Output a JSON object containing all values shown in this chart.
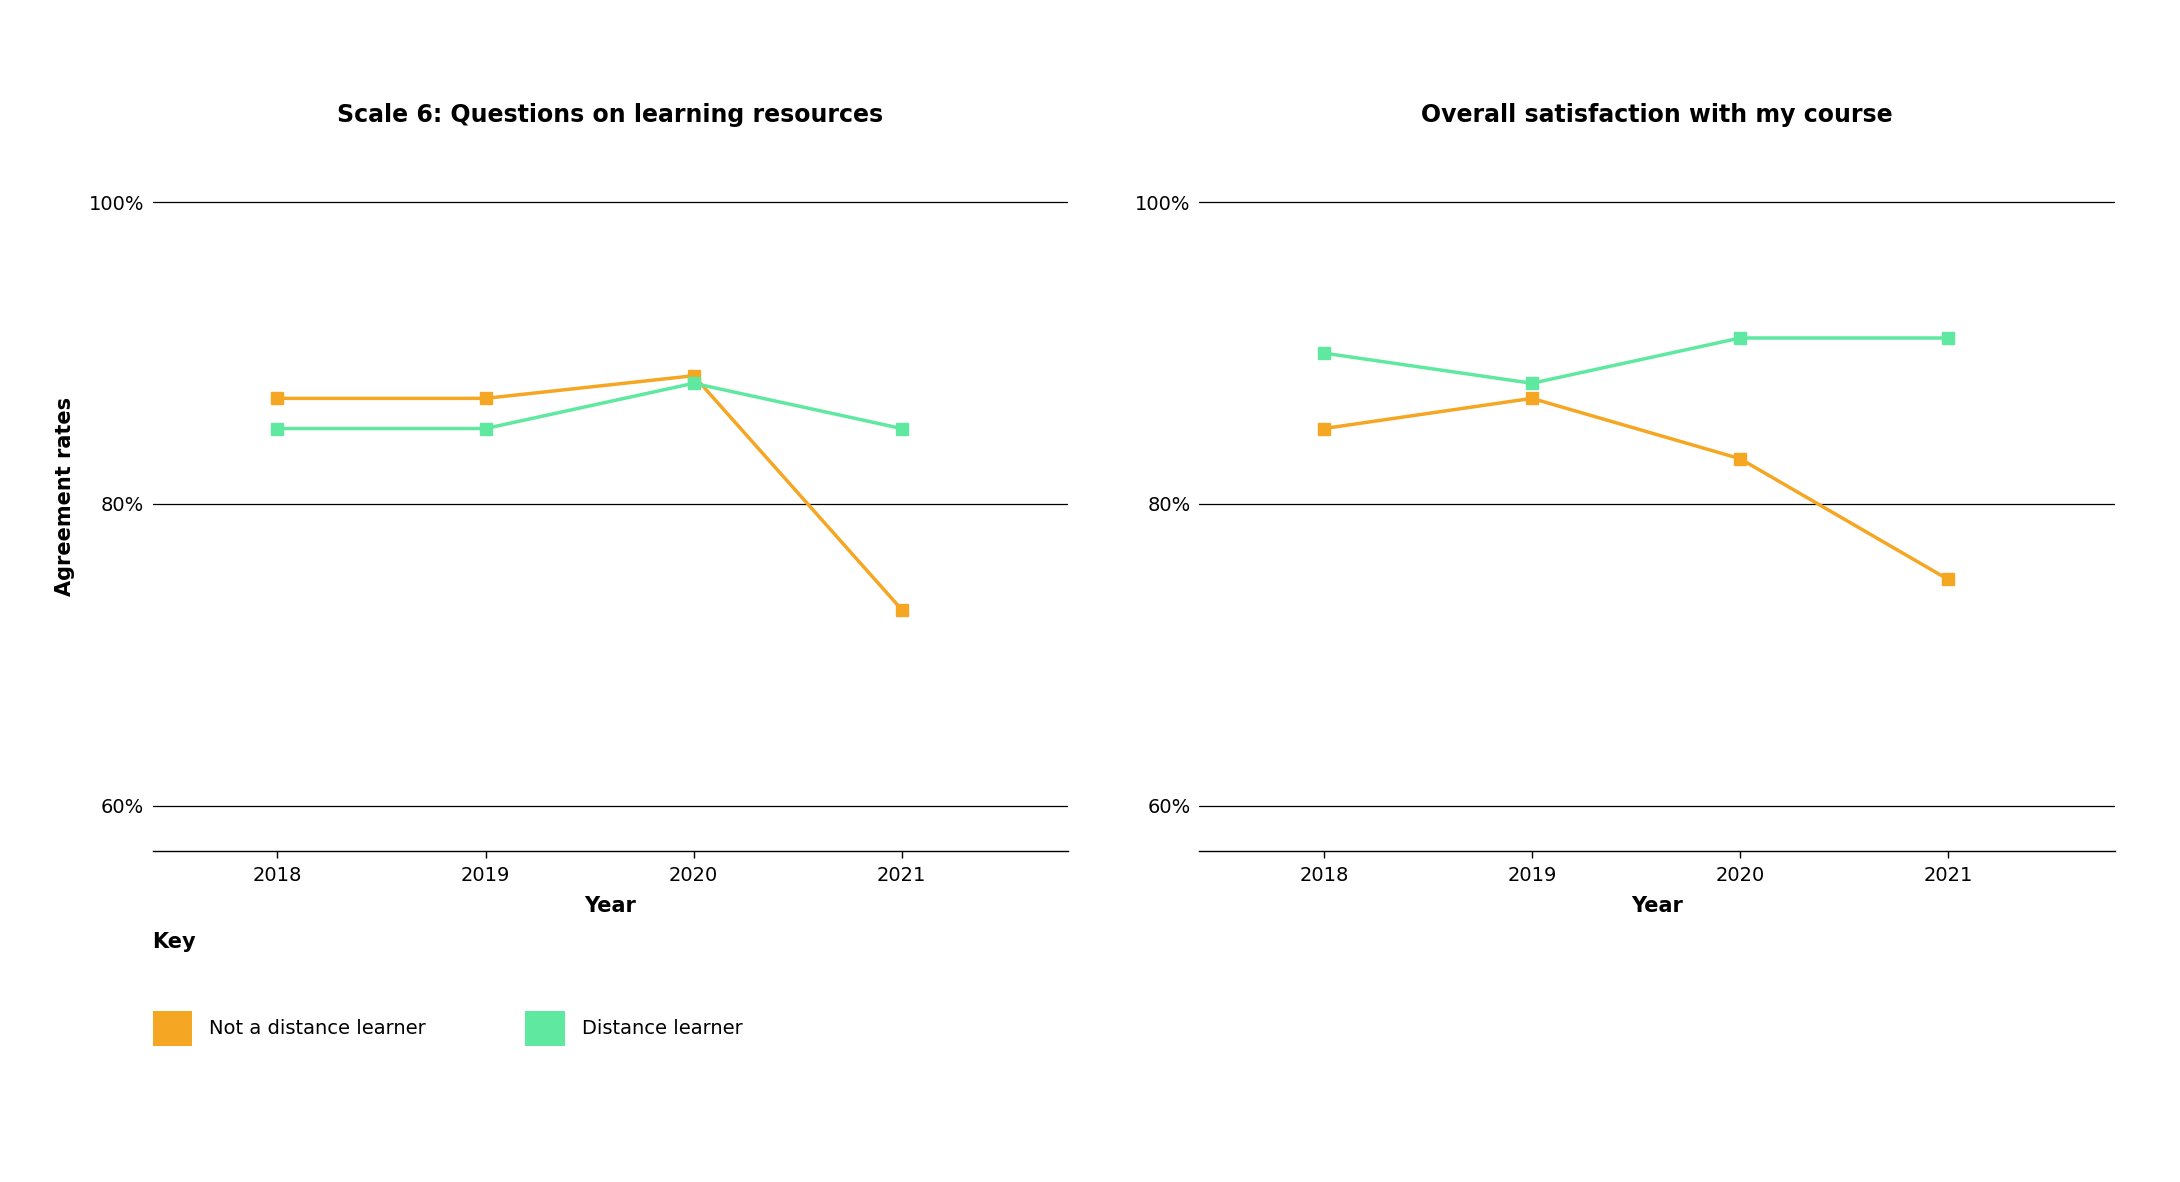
{
  "years": [
    2018,
    2019,
    2020,
    2021
  ],
  "chart1": {
    "title": "Scale 6: Questions on learning resources",
    "orange": [
      87.0,
      87.0,
      88.5,
      73.0
    ],
    "green": [
      85.0,
      85.0,
      88.0,
      85.0
    ]
  },
  "chart2": {
    "title": "Overall satisfaction with my course",
    "orange": [
      85.0,
      87.0,
      83.0,
      75.0
    ],
    "green": [
      90.0,
      88.0,
      91.0,
      91.0
    ]
  },
  "orange_color": "#F5A623",
  "green_color": "#5EE8A0",
  "ylabel": "Agreement rates",
  "xlabel": "Year",
  "yticks": [
    60,
    80,
    100
  ],
  "ylim": [
    57,
    104
  ],
  "xlim": [
    2017.4,
    2021.8
  ],
  "legend_title": "Key",
  "legend_orange": "Not a distance learner",
  "legend_green": "Distance learner",
  "title_fontsize": 17,
  "label_fontsize": 15,
  "tick_fontsize": 14,
  "legend_fontsize": 14,
  "legend_title_fontsize": 15,
  "line_width": 2.5,
  "marker": "s",
  "marker_size": 8
}
